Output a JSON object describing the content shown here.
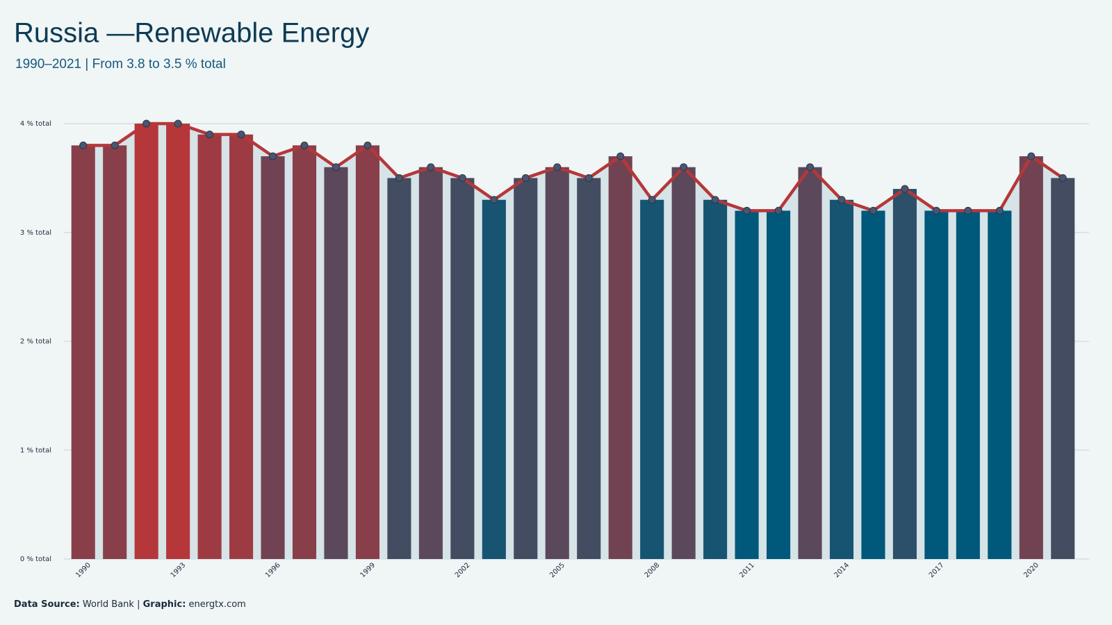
{
  "chart_data": {
    "type": "bar_line",
    "title": "Russia —Renewable Energy",
    "subtitle": "1990–2021 | From 3.8 to 3.5 % total",
    "categories": [
      "1990",
      null,
      null,
      "1993",
      null,
      null,
      "1996",
      null,
      null,
      "1999",
      null,
      null,
      "2002",
      null,
      null,
      "2005",
      null,
      null,
      "2008",
      null,
      null,
      "2011",
      null,
      null,
      "2014",
      null,
      null,
      "2017",
      null,
      null,
      "2020",
      null
    ],
    "values": [
      3.8,
      3.8,
      4.0,
      4.0,
      3.9,
      3.9,
      3.7,
      3.8,
      3.6,
      3.8,
      3.5,
      3.6,
      3.5,
      3.3,
      3.5,
      3.6,
      3.5,
      3.7,
      3.3,
      3.6,
      3.3,
      3.2,
      3.2,
      3.6,
      3.3,
      3.2,
      3.4,
      3.2,
      3.2,
      3.2,
      3.7,
      3.5
    ],
    "color_scale": [
      "#00587a",
      "#b5373a"
    ],
    "line_color": "#b5373a",
    "marker_color": "#4a5670",
    "area_color": "#d6e3e7",
    "ylim": [
      0,
      4
    ],
    "yticks": [
      {
        "value": 0,
        "label": "0 % total"
      },
      {
        "value": 1,
        "label": "1 % total"
      },
      {
        "value": 2,
        "label": "2 % total"
      },
      {
        "value": 3,
        "label": "3 % total"
      },
      {
        "value": 4,
        "label": "4 % total"
      }
    ],
    "grid": true,
    "footer": {
      "source_label": "Data Source:",
      "source": "World Bank",
      "separator": "|",
      "credit_label": "Graphic:",
      "credit": "energtx.com"
    }
  }
}
